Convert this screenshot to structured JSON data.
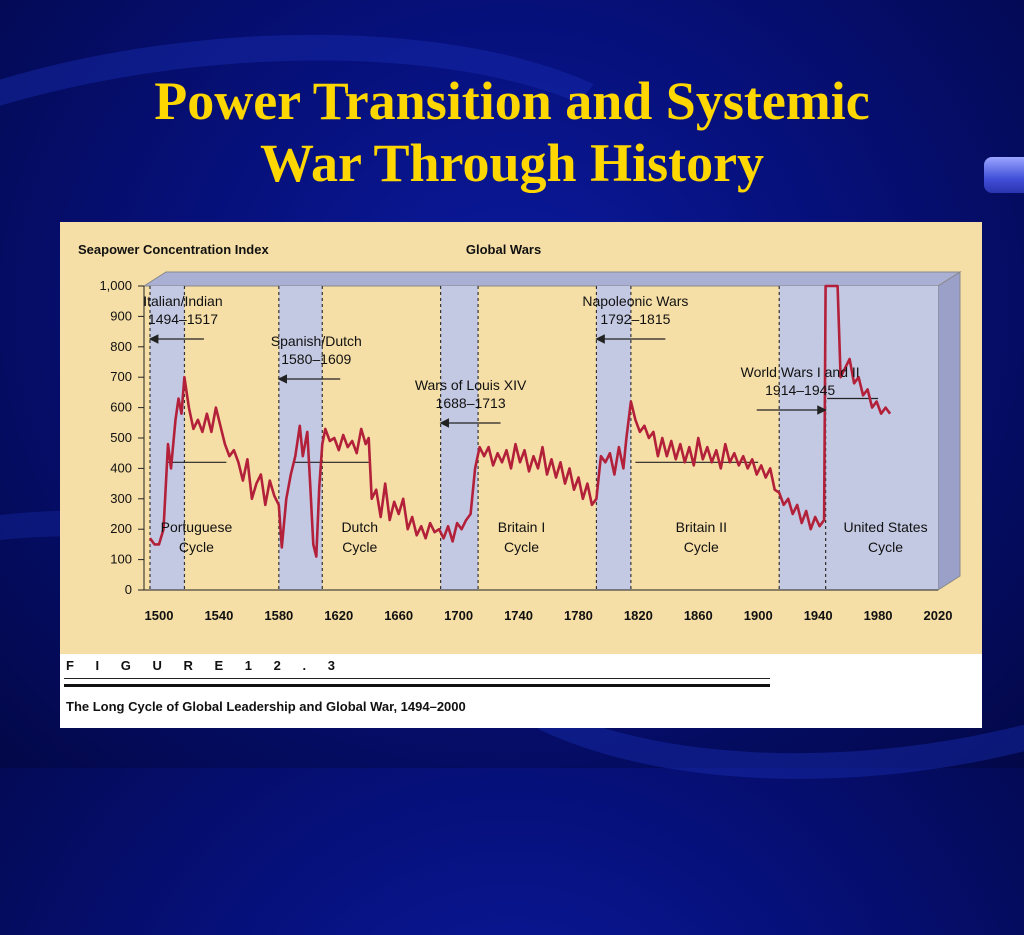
{
  "slide": {
    "title_line1": "Power Transition and Systemic",
    "title_line2": "War Through History",
    "title_color": "#ffd700"
  },
  "figure": {
    "label": "F I G U R E   1 2 . 3",
    "caption": "The Long Cycle of Global Leadership and Global War, 1494–2000"
  },
  "chart_data": {
    "type": "line",
    "ylabel": "Seapower Concentration Index",
    "band_label": "Global Wars",
    "xlim": [
      1490,
      2020
    ],
    "ylim": [
      0,
      1000
    ],
    "x_ticks": [
      1500,
      1540,
      1580,
      1620,
      1660,
      1700,
      1740,
      1780,
      1820,
      1860,
      1900,
      1940,
      1980,
      2020
    ],
    "y_ticks": [
      0,
      100,
      200,
      300,
      400,
      500,
      600,
      700,
      800,
      900,
      1000
    ],
    "y_tick_labels": [
      "0",
      "100",
      "200",
      "300",
      "400",
      "500",
      "600",
      "700",
      "800",
      "900",
      "1,000"
    ],
    "line_color": "#b3203a",
    "background_color": "#f6dfa6",
    "band_color": "#c4c9e3",
    "wars": [
      {
        "name": "Italian/Indian",
        "years": "1494–1517",
        "start": 1494,
        "end": 1517
      },
      {
        "name": "Spanish/Dutch",
        "years": "1580–1609",
        "start": 1580,
        "end": 1609
      },
      {
        "name": "Wars of Louis XIV",
        "years": "1688–1713",
        "start": 1688,
        "end": 1713
      },
      {
        "name": "Napoleonic Wars",
        "years": "1792–1815",
        "start": 1792,
        "end": 1815
      },
      {
        "name": "World Wars I and II",
        "years": "1914–1945",
        "start": 1914,
        "end": 1945
      }
    ],
    "cycles": [
      {
        "name": "Portuguese",
        "label2": "Cycle",
        "x": 1525,
        "threshold": 420,
        "start": 1505,
        "end": 1545
      },
      {
        "name": "Dutch",
        "label2": "Cycle",
        "x": 1634,
        "threshold": 420,
        "start": 1590,
        "end": 1640
      },
      {
        "name": "Britain I",
        "label2": "Cycle",
        "x": 1742,
        "threshold": null,
        "start": null,
        "end": null
      },
      {
        "name": "Britain II",
        "label2": "Cycle",
        "x": 1862,
        "threshold": 420,
        "start": 1818,
        "end": 1900
      },
      {
        "name": "United States",
        "label2": "Cycle",
        "x": 1985,
        "threshold": 630,
        "start": 1946,
        "end": 1980
      }
    ],
    "series": [
      {
        "values": [
          [
            1494,
            170
          ],
          [
            1497,
            150
          ],
          [
            1500,
            150
          ],
          [
            1503,
            200
          ],
          [
            1506,
            480
          ],
          [
            1508,
            400
          ],
          [
            1511,
            560
          ],
          [
            1513,
            630
          ],
          [
            1515,
            580
          ],
          [
            1517,
            700
          ],
          [
            1520,
            600
          ],
          [
            1523,
            530
          ],
          [
            1526,
            560
          ],
          [
            1529,
            520
          ],
          [
            1532,
            580
          ],
          [
            1535,
            520
          ],
          [
            1538,
            600
          ],
          [
            1541,
            540
          ],
          [
            1544,
            480
          ],
          [
            1547,
            440
          ],
          [
            1550,
            460
          ],
          [
            1553,
            420
          ],
          [
            1556,
            360
          ],
          [
            1559,
            430
          ],
          [
            1562,
            300
          ],
          [
            1565,
            350
          ],
          [
            1568,
            380
          ],
          [
            1571,
            280
          ],
          [
            1574,
            360
          ],
          [
            1577,
            310
          ],
          [
            1580,
            280
          ],
          [
            1582,
            140
          ],
          [
            1585,
            300
          ],
          [
            1588,
            380
          ],
          [
            1591,
            440
          ],
          [
            1594,
            540
          ],
          [
            1596,
            440
          ],
          [
            1599,
            520
          ],
          [
            1601,
            340
          ],
          [
            1603,
            150
          ],
          [
            1605,
            110
          ],
          [
            1607,
            340
          ],
          [
            1609,
            480
          ],
          [
            1611,
            530
          ],
          [
            1614,
            490
          ],
          [
            1617,
            500
          ],
          [
            1620,
            460
          ],
          [
            1623,
            510
          ],
          [
            1626,
            470
          ],
          [
            1629,
            490
          ],
          [
            1632,
            450
          ],
          [
            1635,
            530
          ],
          [
            1638,
            480
          ],
          [
            1640,
            500
          ],
          [
            1642,
            300
          ],
          [
            1645,
            330
          ],
          [
            1648,
            240
          ],
          [
            1651,
            350
          ],
          [
            1654,
            230
          ],
          [
            1657,
            290
          ],
          [
            1660,
            250
          ],
          [
            1663,
            300
          ],
          [
            1666,
            200
          ],
          [
            1669,
            240
          ],
          [
            1672,
            180
          ],
          [
            1675,
            210
          ],
          [
            1678,
            170
          ],
          [
            1681,
            220
          ],
          [
            1684,
            190
          ],
          [
            1687,
            200
          ],
          [
            1690,
            170
          ],
          [
            1693,
            210
          ],
          [
            1696,
            160
          ],
          [
            1699,
            220
          ],
          [
            1702,
            200
          ],
          [
            1705,
            230
          ],
          [
            1708,
            250
          ],
          [
            1711,
            400
          ],
          [
            1714,
            470
          ],
          [
            1717,
            440
          ],
          [
            1720,
            470
          ],
          [
            1723,
            410
          ],
          [
            1726,
            450
          ],
          [
            1729,
            420
          ],
          [
            1732,
            460
          ],
          [
            1735,
            400
          ],
          [
            1738,
            480
          ],
          [
            1741,
            420
          ],
          [
            1744,
            460
          ],
          [
            1747,
            390
          ],
          [
            1750,
            440
          ],
          [
            1753,
            400
          ],
          [
            1756,
            470
          ],
          [
            1759,
            380
          ],
          [
            1762,
            430
          ],
          [
            1765,
            370
          ],
          [
            1768,
            420
          ],
          [
            1771,
            350
          ],
          [
            1774,
            400
          ],
          [
            1777,
            330
          ],
          [
            1780,
            370
          ],
          [
            1783,
            300
          ],
          [
            1786,
            350
          ],
          [
            1789,
            280
          ],
          [
            1792,
            300
          ],
          [
            1795,
            440
          ],
          [
            1798,
            420
          ],
          [
            1801,
            450
          ],
          [
            1804,
            380
          ],
          [
            1807,
            470
          ],
          [
            1810,
            400
          ],
          [
            1812,
            500
          ],
          [
            1815,
            620
          ],
          [
            1818,
            560
          ],
          [
            1821,
            520
          ],
          [
            1824,
            540
          ],
          [
            1827,
            500
          ],
          [
            1830,
            520
          ],
          [
            1833,
            440
          ],
          [
            1836,
            500
          ],
          [
            1839,
            440
          ],
          [
            1842,
            490
          ],
          [
            1845,
            430
          ],
          [
            1848,
            480
          ],
          [
            1851,
            420
          ],
          [
            1854,
            470
          ],
          [
            1857,
            410
          ],
          [
            1860,
            500
          ],
          [
            1863,
            430
          ],
          [
            1866,
            470
          ],
          [
            1869,
            420
          ],
          [
            1872,
            460
          ],
          [
            1875,
            400
          ],
          [
            1878,
            480
          ],
          [
            1881,
            420
          ],
          [
            1884,
            450
          ],
          [
            1887,
            410
          ],
          [
            1890,
            440
          ],
          [
            1893,
            400
          ],
          [
            1896,
            430
          ],
          [
            1899,
            380
          ],
          [
            1902,
            410
          ],
          [
            1905,
            370
          ],
          [
            1908,
            400
          ],
          [
            1911,
            330
          ],
          [
            1914,
            320
          ],
          [
            1917,
            280
          ],
          [
            1920,
            300
          ],
          [
            1923,
            250
          ],
          [
            1926,
            280
          ],
          [
            1929,
            220
          ],
          [
            1932,
            260
          ],
          [
            1935,
            200
          ],
          [
            1938,
            240
          ],
          [
            1941,
            210
          ],
          [
            1944,
            230
          ],
          [
            1945,
            1000
          ],
          [
            1950,
            1000
          ],
          [
            1953,
            1000
          ],
          [
            1955,
            700
          ],
          [
            1958,
            730
          ],
          [
            1961,
            760
          ],
          [
            1964,
            680
          ],
          [
            1967,
            700
          ],
          [
            1970,
            640
          ],
          [
            1973,
            660
          ],
          [
            1976,
            600
          ],
          [
            1979,
            620
          ],
          [
            1982,
            580
          ],
          [
            1985,
            600
          ],
          [
            1988,
            580
          ]
        ]
      }
    ]
  }
}
